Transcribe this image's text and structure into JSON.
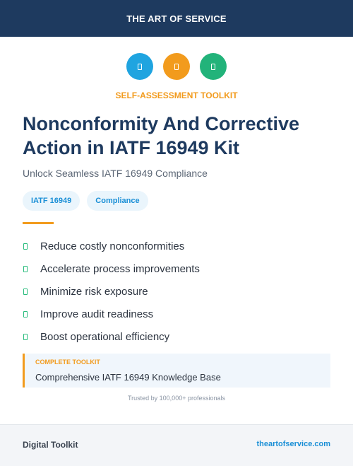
{
  "header": {
    "brand": "THE ART OF SERVICE"
  },
  "icons": [
    {
      "name": "document-icon",
      "color": "#1fa4e0"
    },
    {
      "name": "document-icon",
      "color": "#f29b1d"
    },
    {
      "name": "document-icon",
      "color": "#22b37a"
    }
  ],
  "kicker": "SELF-ASSESSMENT TOOLKIT",
  "title": "Nonconformity And Corrective Action in IATF 16949 Kit",
  "subtitle": "Unlock Seamless IATF 16949 Compliance",
  "tags": [
    "IATF 16949",
    "Compliance"
  ],
  "benefits": [
    "Reduce costly nonconformities",
    "Accelerate process improvements",
    "Minimize risk exposure",
    "Improve audit readiness",
    "Boost operational efficiency"
  ],
  "callout": {
    "label": "COMPLETE TOOLKIT",
    "text": "Comprehensive IATF 16949 Knowledge Base"
  },
  "trust": "Trusted by 100,000+ professionals",
  "footer": {
    "left": "Digital Toolkit",
    "right": "theartofservice.com"
  },
  "colors": {
    "navy": "#1e3a5f",
    "accent_orange": "#f29b1d",
    "accent_blue": "#1a8fd6",
    "accent_green": "#22b37a"
  }
}
